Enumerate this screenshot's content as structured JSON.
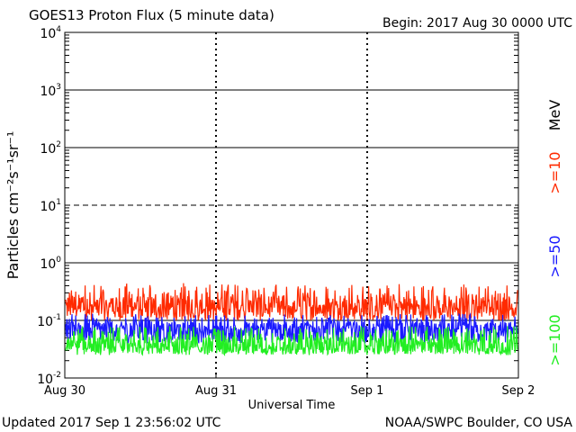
{
  "header": {
    "title": "GOES13 Proton Flux (5 minute data)",
    "begin": "Begin: 2017 Aug 30 0000 UTC"
  },
  "footer": {
    "updated": "Updated 2017 Sep  1 23:56:02 UTC",
    "credit": "NOAA/SWPC Boulder, CO USA"
  },
  "chart_data": {
    "type": "line",
    "title": "GOES13 Proton Flux (5 minute data)",
    "xlabel": "Universal Time",
    "ylabel": "Particles cm⁻²s⁻¹sr⁻¹",
    "yscale": "log",
    "ylim": [
      0.01,
      10000
    ],
    "y_ticks": [
      {
        "value": 0.01,
        "base": "10",
        "exp": "-2"
      },
      {
        "value": 0.1,
        "base": "10",
        "exp": "-1"
      },
      {
        "value": 1,
        "base": "10",
        "exp": "0"
      },
      {
        "value": 10,
        "base": "10",
        "exp": "1"
      },
      {
        "value": 100,
        "base": "10",
        "exp": "2"
      },
      {
        "value": 1000,
        "base": "10",
        "exp": "3"
      },
      {
        "value": 10000,
        "base": "10",
        "exp": "4"
      }
    ],
    "x_ticks": [
      "Aug 30",
      "Aug 31",
      "Sep 1",
      "Sep 2"
    ],
    "xlim": [
      "2017-08-30 00:00",
      "2017-09-02 00:00"
    ],
    "threshold_lines": [
      {
        "value": 10,
        "style": "dashed"
      }
    ],
    "grid": "solid horizontal lines at decades; dashed vertical day separators",
    "legend_title": "MeV",
    "series": [
      {
        "name": ">=10",
        "color": "#ff2a00",
        "typical": 0.17,
        "range": [
          0.1,
          0.45
        ]
      },
      {
        "name": ">=50",
        "color": "#1a1aff",
        "typical": 0.07,
        "range": [
          0.04,
          0.13
        ]
      },
      {
        "name": ">=100",
        "color": "#22ee22",
        "typical": 0.035,
        "range": [
          0.025,
          0.08
        ]
      }
    ]
  }
}
